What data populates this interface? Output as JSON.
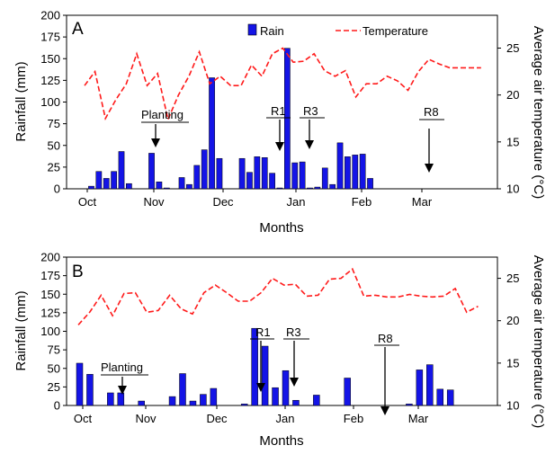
{
  "figure": {
    "legend": {
      "rain_label": "Rain",
      "temp_label": "Temperature"
    },
    "colors": {
      "rain": "#1414e6",
      "temperature": "#ff1a1a"
    }
  },
  "chart_data": [
    {
      "type": "bar",
      "panel": "A",
      "xlabel": "Months",
      "ylabel": "Rainfall (mm)",
      "y2label": "Average air temperature (°C)",
      "ylim": [
        0,
        200
      ],
      "yticks": [
        0,
        25,
        50,
        75,
        100,
        125,
        150,
        175,
        200
      ],
      "y2lim": [
        10,
        28.5
      ],
      "y2ticks": [
        10,
        15,
        20,
        25
      ],
      "month_labels": [
        "Oct",
        "Nov",
        "Dec",
        "Jan",
        "Feb",
        "Mar"
      ],
      "month_label_positions": [
        3,
        13,
        23,
        33,
        43,
        52
      ],
      "n_slots": 60,
      "series": [
        {
          "name": "Rain",
          "kind": "bar",
          "slots": [
            1,
            2,
            3,
            4,
            5,
            6,
            7,
            9,
            10,
            11,
            13,
            14,
            15,
            16,
            17,
            18,
            19,
            21,
            22,
            23,
            24,
            25,
            26,
            27,
            28,
            29,
            30,
            31,
            32,
            33,
            34,
            35,
            36,
            37,
            38,
            39,
            40,
            41
          ],
          "values": [
            3,
            20,
            12,
            20,
            43,
            6,
            0,
            41,
            8,
            1,
            13,
            5,
            27,
            45,
            128,
            35,
            0,
            35,
            19,
            37,
            36,
            18,
            1,
            162,
            30,
            31,
            1,
            2,
            24,
            5,
            53,
            37,
            39,
            40,
            12,
            0,
            0,
            0
          ]
        },
        {
          "name": "Temperature",
          "kind": "line",
          "x": [
            0,
            1,
            2,
            3,
            4,
            5,
            6,
            7,
            8,
            9,
            10,
            11,
            12,
            13,
            14,
            15,
            16,
            17,
            18,
            19,
            20,
            21,
            22,
            23,
            24,
            25,
            26,
            27,
            28,
            29,
            30,
            31,
            32,
            33,
            34,
            35,
            36,
            37,
            38,
            39
          ],
          "values": [
            21.0,
            22.5,
            17.5,
            19.5,
            21.2,
            24.4,
            21.0,
            22.3,
            17.4,
            20.0,
            22.0,
            24.6,
            21.2,
            22.0,
            21.0,
            21.0,
            23.2,
            22.0,
            24.4,
            25.0,
            23.5,
            23.6,
            24.4,
            22.6,
            22.0,
            22.6,
            19.8,
            21.2,
            21.2,
            22.0,
            21.5,
            20.5,
            22.5,
            23.8,
            23.3,
            22.9,
            22.9,
            22.9,
            22.9,
            22.9
          ]
        }
      ],
      "annotations": [
        {
          "label": "Planting",
          "underline": true
        },
        {
          "label": "R1",
          "underline": true
        },
        {
          "label": "R3",
          "underline": true
        },
        {
          "label": "R8",
          "underline": true
        }
      ]
    },
    {
      "type": "bar",
      "panel": "B",
      "xlabel": "Months",
      "ylabel": "Rainfall (mm)",
      "y2label": "Average air temperature (°C)",
      "ylim": [
        0,
        200
      ],
      "yticks": [
        0,
        25,
        50,
        75,
        100,
        125,
        150,
        175,
        200
      ],
      "y2lim": [
        10,
        27.5
      ],
      "y2ticks": [
        10,
        15,
        20,
        25
      ],
      "month_labels": [
        "Oct",
        "Nov",
        "Dec",
        "Jan",
        "Feb",
        "Mar"
      ],
      "month_labels_short": true,
      "n_slots": 60,
      "series": [
        {
          "name": "Rain",
          "kind": "bar",
          "values": [
            57,
            42,
            0,
            17,
            17,
            0,
            6,
            0,
            0,
            12,
            43,
            6,
            15,
            23,
            0,
            0,
            2,
            104,
            80,
            24,
            47,
            7,
            0,
            14,
            0,
            0,
            37,
            0,
            0,
            0,
            0,
            0,
            2,
            48,
            55,
            22,
            21
          ]
        },
        {
          "name": "Temperature",
          "kind": "line",
          "values": [
            19.5,
            21.0,
            23.0,
            20.6,
            23.2,
            23.3,
            21.0,
            21.2,
            23.0,
            21.4,
            20.8,
            23.3,
            24.2,
            23.3,
            22.3,
            22.3,
            23.3,
            25.0,
            24.2,
            24.3,
            22.9,
            23.0,
            24.9,
            25.0,
            26.1,
            22.9,
            23.0,
            22.8,
            22.8,
            23.1,
            22.9,
            22.8,
            22.9,
            23.8,
            21.0,
            21.7
          ]
        }
      ],
      "annotations": [
        {
          "label": "Planting",
          "underline": true
        },
        {
          "label": "R1",
          "underline": true
        },
        {
          "label": "R3",
          "underline": true
        },
        {
          "label": "R8",
          "underline": true
        }
      ]
    }
  ]
}
